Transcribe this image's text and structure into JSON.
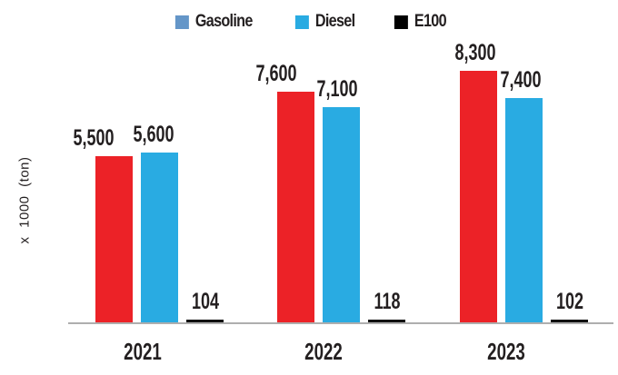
{
  "chart_data": {
    "type": "bar",
    "title": "",
    "categories": [
      "2021",
      "2022",
      "2023"
    ],
    "series": [
      {
        "name": "Gasoline",
        "values": [
          5500,
          7600,
          8300
        ],
        "labels": [
          "5,500",
          "7,600",
          "8,300"
        ],
        "bar_color": "#EC2227"
      },
      {
        "name": "Diesel",
        "values": [
          5600,
          7100,
          7400
        ],
        "labels": [
          "5,600",
          "7,100",
          "7,400"
        ],
        "bar_color": "#29ABE2"
      },
      {
        "name": "E100",
        "values": [
          104,
          118,
          102
        ],
        "labels": [
          "104",
          "118",
          "102"
        ],
        "bar_color": "#111111"
      }
    ],
    "xlabel": "",
    "ylabel": "x 1000 (ton)",
    "ylim": [
      0,
      8300
    ],
    "grid": false,
    "legend_position": "top",
    "data_labels": true,
    "axis_line_color": "#AEAEAE"
  },
  "legend": {
    "items": [
      {
        "label": "Gasoline",
        "swatch_color": "#6496C8"
      },
      {
        "label": "Diesel",
        "swatch_color": "#29ABE2"
      },
      {
        "label": "E100",
        "swatch_color": "#000000"
      }
    ]
  },
  "background_color": "#FFFFFF"
}
